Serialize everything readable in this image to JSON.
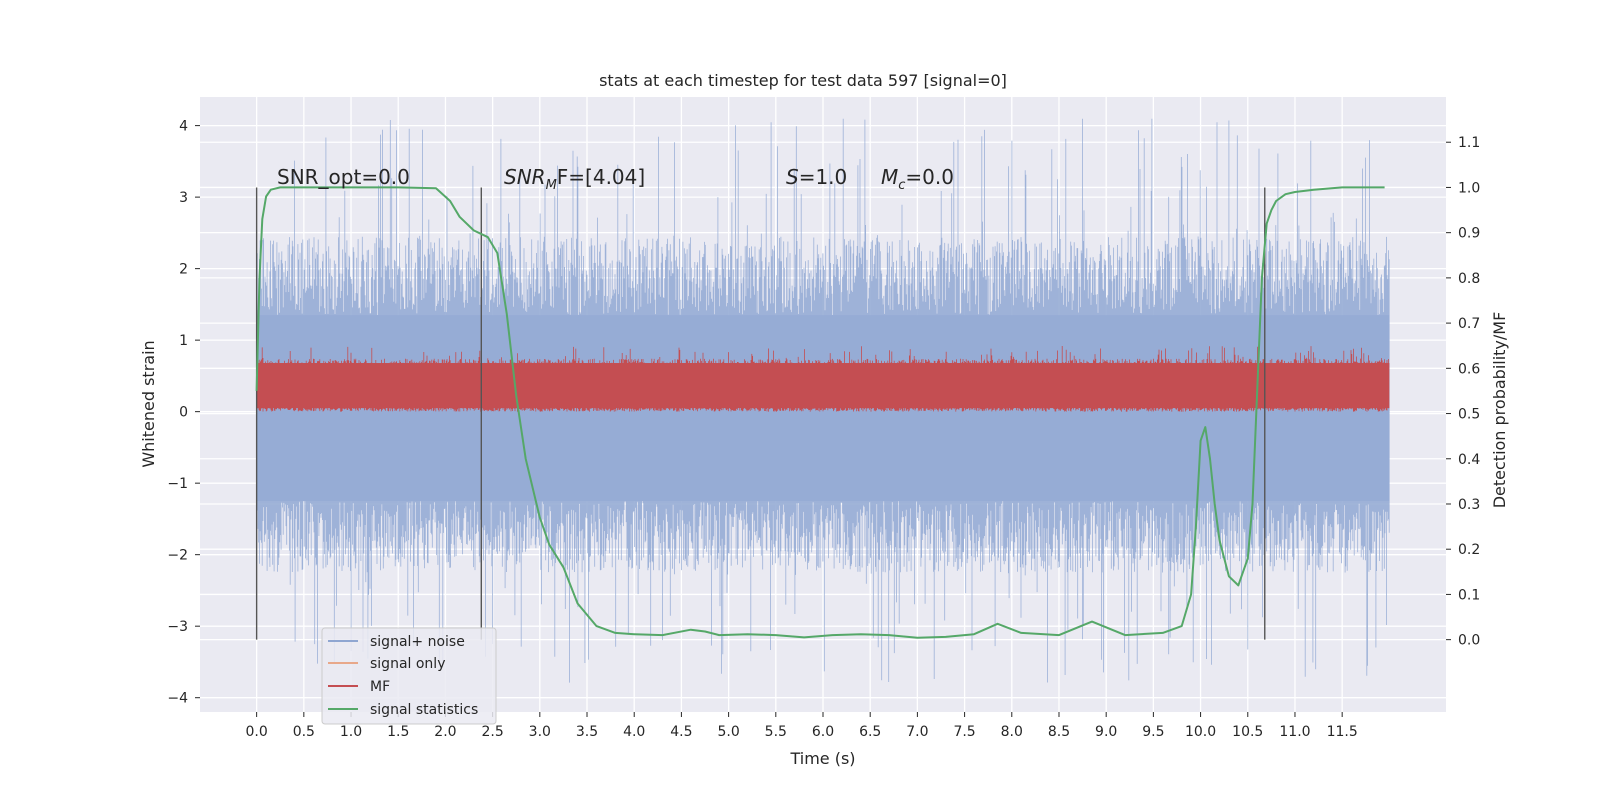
{
  "chart_data": {
    "type": "line",
    "title": "stats at each timestep for test data 597 [signal=0]",
    "xlabel": "Time (s)",
    "ylabel": "Whitened strain",
    "y2label": "Detection probability/MF",
    "xlim": [
      -0.6,
      12.6
    ],
    "ylim": [
      -4.2,
      4.4
    ],
    "y2lim": [
      -0.16,
      1.2
    ],
    "x_ticks": [
      "0.0",
      "0.5",
      "1.0",
      "1.5",
      "2.0",
      "2.5",
      "3.0",
      "3.5",
      "4.0",
      "4.5",
      "5.0",
      "5.5",
      "6.0",
      "6.5",
      "7.0",
      "7.5",
      "8.0",
      "8.5",
      "9.0",
      "9.5",
      "10.0",
      "10.5",
      "11.0",
      "11.5"
    ],
    "x_tick_values": [
      0,
      0.5,
      1,
      1.5,
      2,
      2.5,
      3,
      3.5,
      4,
      4.5,
      5,
      5.5,
      6,
      6.5,
      7,
      7.5,
      8,
      8.5,
      9,
      9.5,
      10,
      10.5,
      11,
      11.5
    ],
    "y_ticks": [
      "−4",
      "−3",
      "−2",
      "−1",
      "0",
      "1",
      "2",
      "3",
      "4"
    ],
    "y_tick_values": [
      -4,
      -3,
      -2,
      -1,
      0,
      1,
      2,
      3,
      4
    ],
    "y2_ticks": [
      "0.0",
      "0.1",
      "0.2",
      "0.3",
      "0.4",
      "0.5",
      "0.6",
      "0.7",
      "0.8",
      "0.9",
      "1.0",
      "1.1"
    ],
    "y2_tick_values": [
      0,
      0.1,
      0.2,
      0.3,
      0.4,
      0.5,
      0.6,
      0.7,
      0.8,
      0.9,
      1.0,
      1.1
    ],
    "grid": true,
    "legend_position": "lower-left",
    "annotations": {
      "snr_opt": "SNR_opt=0.0",
      "snr_mf_label": "SNR",
      "snr_mf_sub": "M",
      "snr_mf_value": "F=[4.04]",
      "s_label": "S",
      "s_value": "=1.0",
      "mc_label": "M",
      "mc_sub": "c",
      "mc_value": "=0.0"
    },
    "vertical_lines_x": [
      0.0,
      2.38,
      10.68
    ],
    "noise_band": {
      "x_start": 0.0,
      "x_end": 12.0,
      "typical_min": -2.0,
      "typical_max": 2.0,
      "spike_min": -3.8,
      "spike_max": 4.1
    },
    "mf_band": {
      "x_start": 0.0,
      "x_end": 12.0,
      "min": 0.0,
      "max": 0.92
    },
    "series": [
      {
        "name": "signal+ noise",
        "color": "#8fa6d1"
      },
      {
        "name": "signal only",
        "color": "#e8a88a"
      },
      {
        "name": "MF",
        "color": "#c44e52"
      },
      {
        "name": "signal statistics",
        "color": "#55a868",
        "axis": "right",
        "x": [
          0.0,
          0.03,
          0.06,
          0.1,
          0.15,
          0.25,
          0.5,
          1.0,
          1.5,
          1.9,
          2.05,
          2.15,
          2.3,
          2.45,
          2.55,
          2.65,
          2.75,
          2.85,
          3.0,
          3.1,
          3.25,
          3.4,
          3.6,
          3.8,
          4.0,
          4.3,
          4.6,
          4.75,
          4.9,
          5.2,
          5.5,
          5.8,
          6.1,
          6.4,
          6.7,
          7.0,
          7.3,
          7.6,
          7.85,
          8.1,
          8.5,
          8.85,
          9.2,
          9.6,
          9.8,
          9.9,
          9.95,
          10.0,
          10.05,
          10.1,
          10.15,
          10.2,
          10.3,
          10.4,
          10.5,
          10.55,
          10.6,
          10.65,
          10.7,
          10.75,
          10.8,
          10.9,
          11.0,
          11.2,
          11.5,
          11.8,
          11.95
        ],
        "y": [
          0.55,
          0.8,
          0.93,
          0.98,
          0.995,
          1.0,
          1.0,
          1.0,
          1.0,
          0.998,
          0.97,
          0.935,
          0.905,
          0.89,
          0.855,
          0.72,
          0.54,
          0.4,
          0.27,
          0.21,
          0.16,
          0.08,
          0.03,
          0.015,
          0.012,
          0.01,
          0.022,
          0.018,
          0.01,
          0.012,
          0.01,
          0.005,
          0.01,
          0.012,
          0.01,
          0.004,
          0.006,
          0.012,
          0.035,
          0.015,
          0.01,
          0.04,
          0.01,
          0.015,
          0.03,
          0.1,
          0.25,
          0.44,
          0.47,
          0.4,
          0.3,
          0.22,
          0.14,
          0.12,
          0.18,
          0.3,
          0.55,
          0.8,
          0.92,
          0.95,
          0.97,
          0.985,
          0.99,
          0.995,
          1.0,
          1.0,
          1.0
        ]
      }
    ]
  }
}
